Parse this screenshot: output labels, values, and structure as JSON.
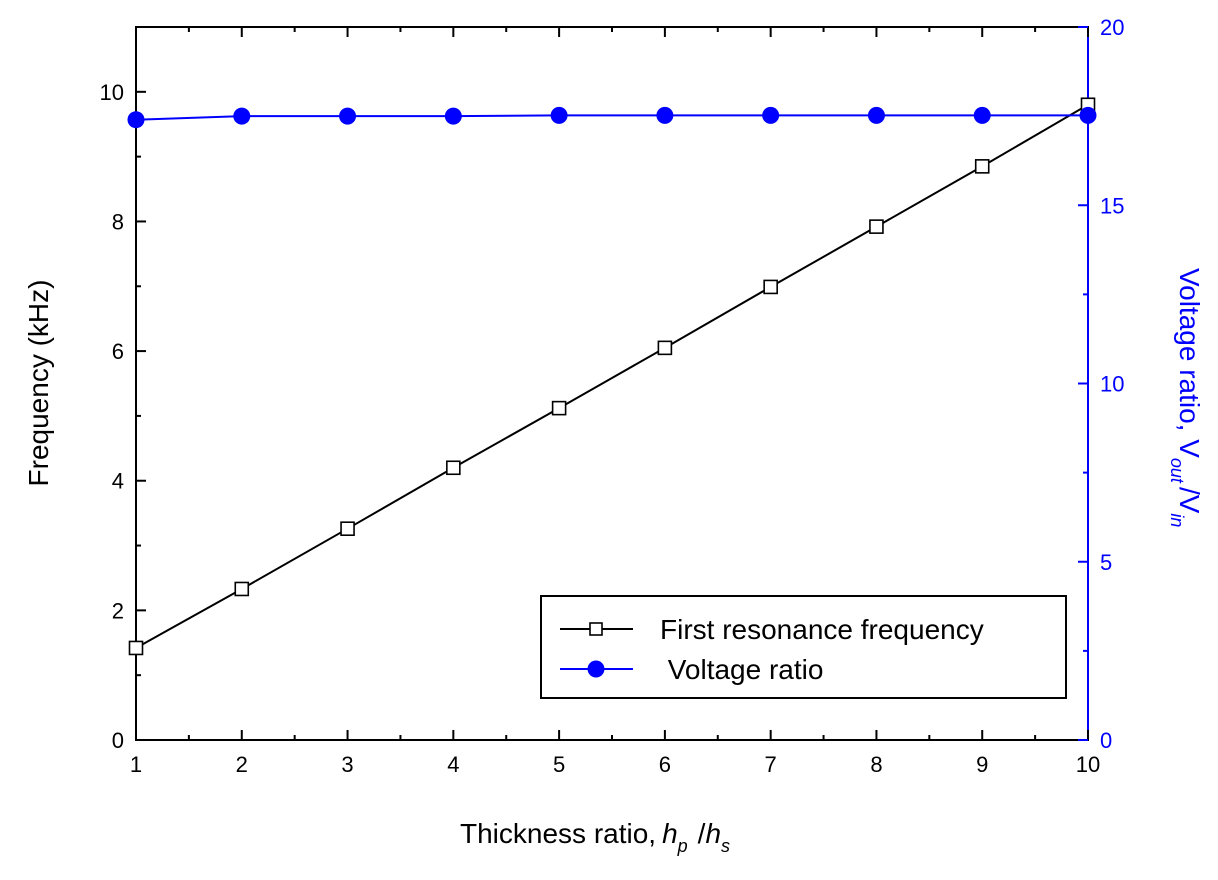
{
  "chart_data": {
    "type": "line",
    "xlabel": {
      "prefix": "Thickness ratio,",
      "num_symbol": "h",
      "num_sub": "p",
      "slash": "/",
      "den_symbol": "h",
      "den_sub": "s"
    },
    "ylabel_left": "Frequency (kHz)",
    "ylabel_right": {
      "prefix": "Voltage ratio, V",
      "num_sub": "out",
      "slash": "/V",
      "den_sub": "in"
    },
    "x": [
      1,
      2,
      3,
      4,
      5,
      6,
      7,
      8,
      9,
      10
    ],
    "x_ticks": [
      "1",
      "2",
      "3",
      "4",
      "5",
      "6",
      "7",
      "8",
      "9",
      "10"
    ],
    "xlim": [
      1,
      10
    ],
    "ylim_left": [
      0,
      11
    ],
    "ylim_right": [
      0,
      20
    ],
    "y_ticks_left": [
      "0",
      "2",
      "4",
      "6",
      "8",
      "10"
    ],
    "y_ticks_right": [
      "0",
      "5",
      "10",
      "15",
      "20"
    ],
    "series": [
      {
        "name": "First resonance frequency",
        "axis": "left",
        "color": "#000000",
        "marker": "open-square",
        "values": [
          1.42,
          2.33,
          3.26,
          4.2,
          5.12,
          6.05,
          6.99,
          7.92,
          8.85,
          9.8
        ]
      },
      {
        "name": "Voltage ratio",
        "axis": "right",
        "color": "#0000ff",
        "marker": "filled-circle",
        "values": [
          17.4,
          17.5,
          17.5,
          17.5,
          17.52,
          17.52,
          17.52,
          17.52,
          17.52,
          17.52
        ]
      }
    ],
    "legend": {
      "position": "bottom-right",
      "entries": [
        "First resonance frequency",
        " Voltage ratio"
      ]
    },
    "grid": false
  }
}
